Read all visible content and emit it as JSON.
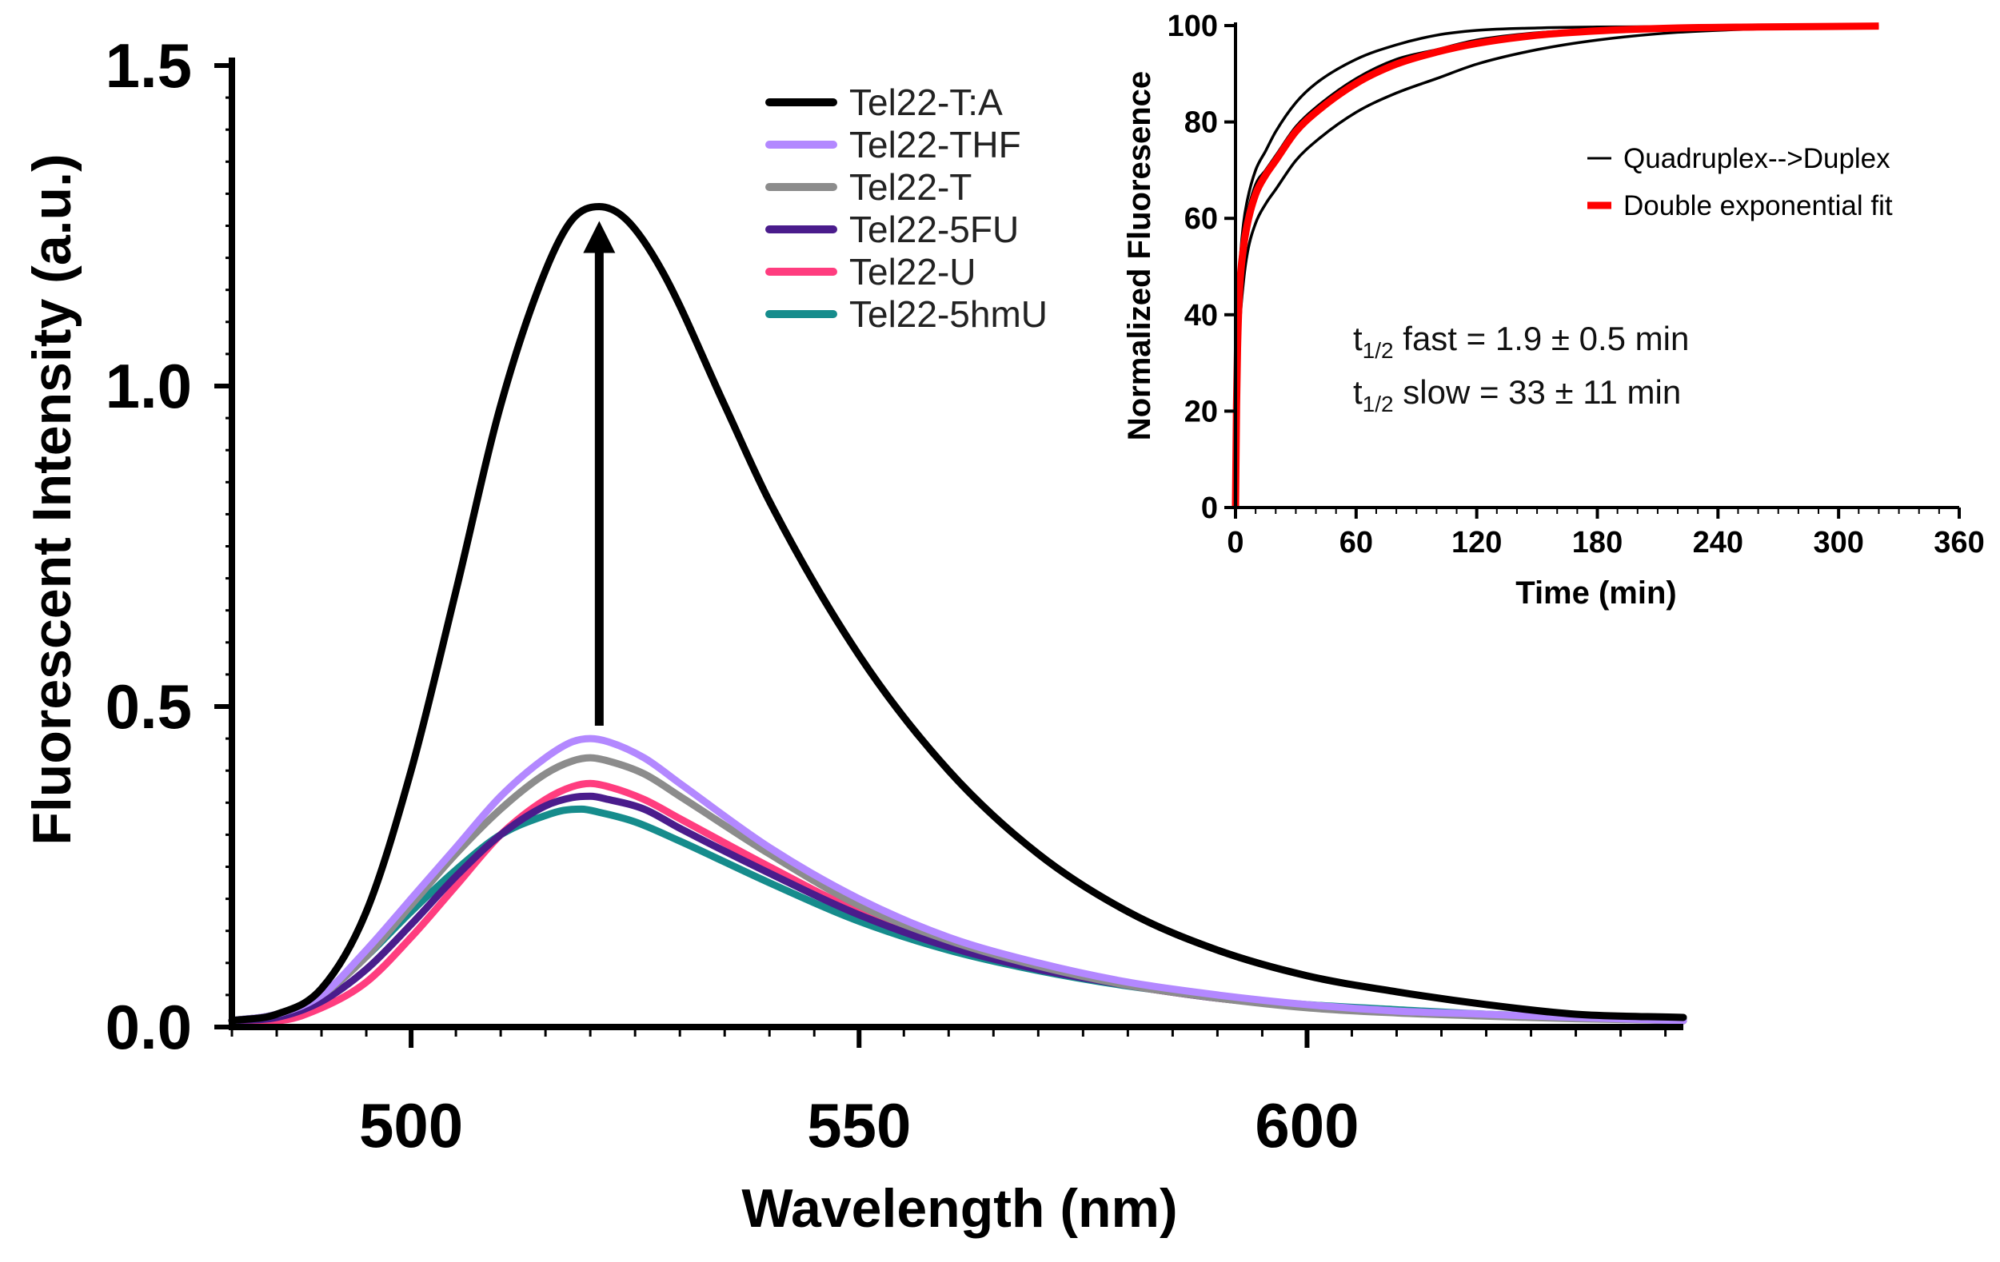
{
  "chart_data": [
    {
      "type": "line",
      "xlabel": "Wavelength (nm)",
      "ylabel": "Fluorescent Intensity (a.u.)",
      "xlim": [
        480,
        642
      ],
      "ylim": [
        0,
        1.5
      ],
      "x_ticks": [
        500,
        550,
        600
      ],
      "x_tick_labels": [
        "500",
        "550",
        "600"
      ],
      "y_ticks": [
        0,
        0.5,
        1.0,
        1.5
      ],
      "y_tick_labels": [
        "0.0",
        "0.5",
        "1.0",
        "1.5"
      ],
      "legend_position": "top-right",
      "annotation": {
        "type": "arrow",
        "x": 521,
        "from": 0.47,
        "to": 1.25
      },
      "series": [
        {
          "name": "Tel22-T:A",
          "color": "#000000",
          "peak": 1.28,
          "peak_x": 521,
          "x": [
            480,
            485,
            490,
            495,
            500,
            505,
            510,
            515,
            518,
            521,
            524,
            528,
            535,
            540,
            550,
            560,
            570,
            580,
            590,
            600,
            610,
            620,
            630,
            642
          ],
          "y": [
            0.01,
            0.02,
            0.06,
            0.18,
            0.4,
            0.68,
            0.97,
            1.18,
            1.26,
            1.28,
            1.26,
            1.18,
            0.97,
            0.82,
            0.58,
            0.4,
            0.27,
            0.18,
            0.12,
            0.08,
            0.055,
            0.035,
            0.02,
            0.015
          ]
        },
        {
          "name": "Tel22-THF",
          "color": "#b388ff",
          "peak": 0.45,
          "peak_x": 520,
          "x": [
            480,
            485,
            490,
            495,
            500,
            505,
            510,
            515,
            518,
            520,
            522,
            526,
            530,
            540,
            550,
            560,
            570,
            580,
            590,
            600,
            610,
            620,
            630,
            642
          ],
          "y": [
            0.01,
            0.02,
            0.05,
            0.12,
            0.2,
            0.28,
            0.36,
            0.42,
            0.445,
            0.45,
            0.445,
            0.42,
            0.38,
            0.28,
            0.2,
            0.14,
            0.1,
            0.07,
            0.05,
            0.035,
            0.025,
            0.02,
            0.015,
            0.01
          ]
        },
        {
          "name": "Tel22-T",
          "color": "#8c8c8c",
          "peak": 0.42,
          "peak_x": 520,
          "x": [
            480,
            485,
            490,
            495,
            500,
            505,
            510,
            515,
            518,
            520,
            522,
            526,
            530,
            540,
            550,
            560,
            570,
            580,
            590,
            600,
            610,
            620,
            630,
            642
          ],
          "y": [
            0.01,
            0.02,
            0.05,
            0.11,
            0.19,
            0.27,
            0.34,
            0.395,
            0.415,
            0.42,
            0.415,
            0.395,
            0.36,
            0.27,
            0.19,
            0.135,
            0.095,
            0.065,
            0.045,
            0.03,
            0.022,
            0.017,
            0.013,
            0.01
          ]
        },
        {
          "name": "Tel22-5FU",
          "color": "#4a1c8c",
          "peak": 0.36,
          "peak_x": 520,
          "x": [
            480,
            485,
            490,
            495,
            500,
            505,
            510,
            515,
            518,
            520,
            522,
            526,
            530,
            540,
            550,
            560,
            570,
            580,
            590,
            600,
            610,
            620,
            630,
            642
          ],
          "y": [
            0.01,
            0.015,
            0.04,
            0.09,
            0.16,
            0.235,
            0.3,
            0.345,
            0.358,
            0.36,
            0.355,
            0.34,
            0.31,
            0.24,
            0.175,
            0.125,
            0.09,
            0.065,
            0.045,
            0.032,
            0.024,
            0.018,
            0.014,
            0.01
          ]
        },
        {
          "name": "Tel22-U",
          "color": "#ff3d7f",
          "peak": 0.38,
          "peak_x": 520,
          "x": [
            480,
            485,
            490,
            495,
            500,
            505,
            510,
            515,
            518,
            520,
            522,
            526,
            530,
            540,
            550,
            560,
            570,
            580,
            590,
            600,
            610,
            620,
            630,
            642
          ],
          "y": [
            0.01,
            0.01,
            0.03,
            0.07,
            0.14,
            0.22,
            0.3,
            0.355,
            0.375,
            0.38,
            0.375,
            0.355,
            0.325,
            0.25,
            0.18,
            0.13,
            0.093,
            0.065,
            0.045,
            0.032,
            0.024,
            0.018,
            0.014,
            0.01
          ]
        },
        {
          "name": "Tel22-5hmU",
          "color": "#168c8c",
          "peak": 0.34,
          "peak_x": 519,
          "x": [
            480,
            485,
            490,
            495,
            500,
            505,
            510,
            515,
            517,
            519,
            521,
            525,
            530,
            540,
            550,
            560,
            570,
            580,
            590,
            600,
            610,
            620,
            630,
            642
          ],
          "y": [
            0.01,
            0.02,
            0.05,
            0.11,
            0.18,
            0.245,
            0.3,
            0.33,
            0.338,
            0.34,
            0.335,
            0.32,
            0.29,
            0.225,
            0.165,
            0.12,
            0.088,
            0.064,
            0.047,
            0.035,
            0.027,
            0.02,
            0.016,
            0.012
          ]
        }
      ]
    },
    {
      "type": "line",
      "xlabel": "Time (min)",
      "ylabel": "Normalized Fluoresence",
      "xlim": [
        0,
        360
      ],
      "ylim": [
        0,
        100
      ],
      "x_ticks": [
        0,
        60,
        120,
        180,
        240,
        300,
        360
      ],
      "x_tick_labels": [
        "0",
        "60",
        "120",
        "180",
        "240",
        "300",
        "360"
      ],
      "y_ticks": [
        0,
        20,
        40,
        60,
        80,
        100
      ],
      "y_tick_labels": [
        "0",
        "20",
        "40",
        "60",
        "80",
        "100"
      ],
      "legend_position": "top-right",
      "series": [
        {
          "name": "Quadruplex-->Duplex",
          "color": "#000000",
          "role": "data traces",
          "traces": [
            {
              "x": [
                0,
                0.5,
                1,
                2,
                4,
                6,
                10,
                15,
                20,
                30,
                40,
                60,
                80,
                100,
                120,
                150,
                180,
                220,
                260,
                320
              ],
              "y": [
                0,
                20,
                32,
                44,
                55,
                61,
                67,
                70,
                73,
                79,
                83,
                89,
                93,
                95,
                97,
                98.5,
                99.2,
                99.6,
                99.8,
                99.9
              ]
            },
            {
              "x": [
                0,
                0.5,
                1,
                2,
                4,
                6,
                10,
                15,
                20,
                30,
                40,
                60,
                80,
                100,
                120,
                150,
                180,
                220,
                260,
                320
              ],
              "y": [
                0,
                16,
                27,
                37,
                47,
                53,
                59,
                63,
                66,
                72,
                76,
                82,
                86,
                89,
                92,
                95,
                97,
                98.6,
                99.3,
                99.7
              ]
            },
            {
              "x": [
                0,
                0.5,
                1,
                2,
                4,
                6,
                10,
                15,
                20,
                30,
                40,
                60,
                80,
                100,
                120,
                150,
                180,
                220,
                260,
                320
              ],
              "y": [
                0,
                24,
                37,
                49,
                59,
                64,
                70,
                74,
                78,
                84,
                88,
                93,
                96,
                98,
                99,
                99.5,
                99.7,
                99.8,
                99.9,
                99.9
              ]
            }
          ]
        },
        {
          "name": "Double exponential fit",
          "color": "#ff0000",
          "role": "fit",
          "x": [
            0,
            0.5,
            1,
            2,
            4,
            6,
            10,
            15,
            20,
            30,
            40,
            60,
            80,
            100,
            120,
            150,
            180,
            220,
            260,
            320
          ],
          "y": [
            0,
            21,
            33,
            45,
            54,
            59,
            65,
            69,
            72,
            78,
            82,
            88,
            92,
            94.5,
            96.3,
            98,
            98.9,
            99.5,
            99.7,
            99.9
          ]
        }
      ],
      "annotations": [
        {
          "prefix": "t",
          "subscript": "1/2",
          "text": " fast = 1.9 ± 0.5 min"
        },
        {
          "prefix": "t",
          "subscript": "1/2",
          "text": " slow = 33 ± 11 min"
        }
      ]
    }
  ]
}
